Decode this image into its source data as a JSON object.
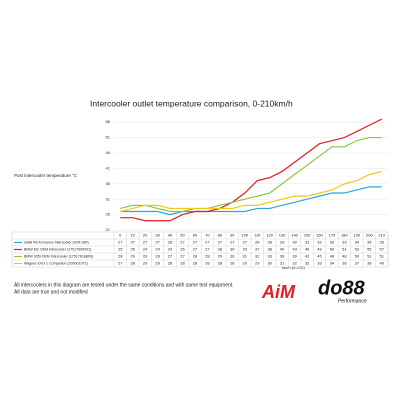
{
  "chart_data": {
    "type": "line",
    "title": "Intercooler outlet temperature comparison, 0-210km/h",
    "y_label": "Post intercooler temperature °C",
    "x_label": "km/h (0-210)",
    "categories": [
      "0",
      "10",
      "20",
      "30",
      "40",
      "50",
      "60",
      "70",
      "80",
      "90",
      "100",
      "110",
      "120",
      "130",
      "140",
      "150",
      "160",
      "170",
      "180",
      "190",
      "200",
      "210"
    ],
    "series": [
      {
        "name": "do88 Performance Intercooler (ICM-280)",
        "color": "#29a8e0",
        "values": [
          27,
          27,
          27,
          27,
          26,
          27,
          27,
          27,
          27,
          27,
          27,
          28,
          28,
          29,
          30,
          31,
          32,
          33,
          33,
          34,
          35,
          35
        ]
      },
      {
        "name": "BMW M2 OEM Intercooler (17517600531)",
        "color": "#e31b23",
        "values": [
          25,
          25,
          24,
          24,
          24,
          26,
          27,
          27,
          28,
          30,
          33,
          37,
          38,
          40,
          43,
          46,
          49,
          50,
          51,
          53,
          55,
          57
        ]
      },
      {
        "name": "BMW 335i OEM Intercooler (17517618809)",
        "color": "#8cc63f",
        "values": [
          28,
          29,
          29,
          28,
          27,
          27,
          28,
          28,
          29,
          30,
          31,
          32,
          33,
          36,
          39,
          42,
          45,
          48,
          48,
          50,
          51,
          51
        ]
      },
      {
        "name": "Wagner EVO 1 Competion (200001071)",
        "color": "#f5c518",
        "values": [
          27,
          28,
          29,
          29,
          28,
          28,
          28,
          28,
          28,
          28,
          29,
          29,
          30,
          31,
          32,
          32,
          33,
          34,
          36,
          37,
          39,
          40
        ]
      }
    ],
    "ylim": [
      21,
      58
    ],
    "yticks": [
      21,
      26,
      31,
      36,
      41,
      46,
      51,
      56
    ],
    "grid": true,
    "footnotes": [
      "All intercoolers in this diagram are tested under the same conditions and with same test equipment.",
      "All data are true and not modified"
    ],
    "logos": [
      "AiM",
      "do88",
      "Performance"
    ]
  }
}
